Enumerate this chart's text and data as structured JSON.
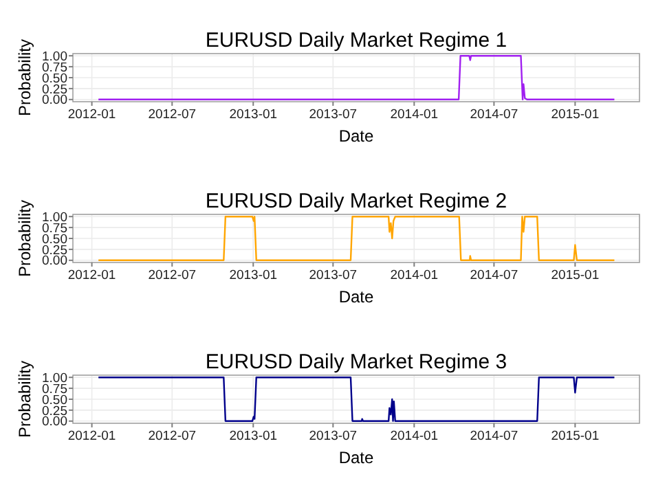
{
  "chart_data": [
    {
      "type": "line",
      "title": "EURUSD Daily Market Regime 1",
      "xlabel": "Date",
      "ylabel": "Probability",
      "grid": true,
      "xlim": [
        "2011-11-19",
        "2015-05-27"
      ],
      "ylim": [
        -0.05,
        1.05
      ],
      "xticks": [
        {
          "value": "2012-01-01",
          "label": "2012-01"
        },
        {
          "value": "2012-07-01",
          "label": "2012-07"
        },
        {
          "value": "2013-01-01",
          "label": "2013-01"
        },
        {
          "value": "2013-07-01",
          "label": "2013-07"
        },
        {
          "value": "2014-01-01",
          "label": "2014-01"
        },
        {
          "value": "2014-07-01",
          "label": "2014-07"
        },
        {
          "value": "2015-01-01",
          "label": "2015-01"
        }
      ],
      "yticks": [
        {
          "value": 0,
          "label": "0.00"
        },
        {
          "value": 0.25,
          "label": "0.25"
        },
        {
          "value": 0.5,
          "label": "0.50"
        },
        {
          "value": 0.75,
          "label": "0.75"
        },
        {
          "value": 1,
          "label": "1.00"
        }
      ],
      "x": [
        "2012-01-16",
        "2014-04-12",
        "2014-04-16",
        "2014-05-06",
        "2014-05-08",
        "2014-05-10",
        "2014-08-31",
        "2014-09-04",
        "2014-09-06",
        "2014-09-09",
        "2014-09-14",
        "2015-03-31"
      ],
      "series": [
        {
          "color": "#a020f0",
          "values": [
            0,
            0,
            1,
            1,
            0.9,
            1,
            1,
            0,
            0.35,
            0.03,
            0,
            0
          ]
        }
      ]
    },
    {
      "type": "line",
      "title": "EURUSD Daily Market Regime 2",
      "xlabel": "Date",
      "ylabel": "Probability",
      "grid": true,
      "xlim": [
        "2011-11-19",
        "2015-05-27"
      ],
      "ylim": [
        -0.05,
        1.05
      ],
      "xticks": [
        {
          "value": "2012-01-01",
          "label": "2012-01"
        },
        {
          "value": "2012-07-01",
          "label": "2012-07"
        },
        {
          "value": "2013-01-01",
          "label": "2013-01"
        },
        {
          "value": "2013-07-01",
          "label": "2013-07"
        },
        {
          "value": "2014-01-01",
          "label": "2014-01"
        },
        {
          "value": "2014-07-01",
          "label": "2014-07"
        },
        {
          "value": "2015-01-01",
          "label": "2015-01"
        }
      ],
      "yticks": [
        {
          "value": 0,
          "label": "0.00"
        },
        {
          "value": 0.25,
          "label": "0.25"
        },
        {
          "value": 0.5,
          "label": "0.50"
        },
        {
          "value": 0.75,
          "label": "0.75"
        },
        {
          "value": 1,
          "label": "1.00"
        }
      ],
      "x": [
        "2012-01-16",
        "2012-10-26",
        "2012-10-30",
        "2012-12-30",
        "2013-01-02",
        "2013-01-04",
        "2013-01-08",
        "2013-08-10",
        "2013-08-14",
        "2013-11-04",
        "2013-11-06",
        "2013-11-09",
        "2013-11-12",
        "2013-11-15",
        "2013-11-19",
        "2014-04-13",
        "2014-04-17",
        "2014-05-07",
        "2014-05-08",
        "2014-05-10",
        "2014-08-31",
        "2014-09-03",
        "2014-09-06",
        "2014-09-09",
        "2014-10-07",
        "2014-10-11",
        "2014-12-29",
        "2015-01-01",
        "2015-01-05",
        "2015-03-31"
      ],
      "series": [
        {
          "color": "#ffa500",
          "values": [
            0,
            0,
            1,
            1,
            0.9,
            1,
            0,
            0,
            1,
            1,
            0.65,
            0.85,
            0.5,
            0.9,
            1,
            1,
            0,
            0,
            0.1,
            0,
            0,
            1,
            0.65,
            1,
            1,
            0,
            0,
            0.35,
            0,
            0
          ]
        }
      ]
    },
    {
      "type": "line",
      "title": "EURUSD Daily Market Regime 3",
      "xlabel": "Date",
      "ylabel": "Probability",
      "grid": true,
      "xlim": [
        "2011-11-19",
        "2015-05-27"
      ],
      "ylim": [
        -0.05,
        1.05
      ],
      "xticks": [
        {
          "value": "2012-01-01",
          "label": "2012-01"
        },
        {
          "value": "2012-07-01",
          "label": "2012-07"
        },
        {
          "value": "2013-01-01",
          "label": "2013-01"
        },
        {
          "value": "2013-07-01",
          "label": "2013-07"
        },
        {
          "value": "2014-01-01",
          "label": "2014-01"
        },
        {
          "value": "2014-07-01",
          "label": "2014-07"
        },
        {
          "value": "2015-01-01",
          "label": "2015-01"
        }
      ],
      "yticks": [
        {
          "value": 0,
          "label": "0.00"
        },
        {
          "value": 0.25,
          "label": "0.25"
        },
        {
          "value": 0.5,
          "label": "0.50"
        },
        {
          "value": 0.75,
          "label": "0.75"
        },
        {
          "value": 1,
          "label": "1.00"
        }
      ],
      "x": [
        "2012-01-16",
        "2012-10-26",
        "2012-10-30",
        "2012-12-30",
        "2013-01-02",
        "2013-01-04",
        "2013-01-08",
        "2013-08-10",
        "2013-08-14",
        "2013-09-04",
        "2013-09-05",
        "2013-09-07",
        "2013-11-04",
        "2013-11-06",
        "2013-11-09",
        "2013-11-12",
        "2013-11-14",
        "2013-11-16",
        "2013-11-19",
        "2014-10-07",
        "2014-10-11",
        "2014-12-29",
        "2015-01-01",
        "2015-01-05",
        "2015-03-31"
      ],
      "series": [
        {
          "color": "#00008b",
          "values": [
            1,
            1,
            0,
            0,
            0.1,
            0.05,
            1,
            1,
            0,
            0,
            0.05,
            0,
            0,
            0.3,
            0.15,
            0.5,
            0,
            0.45,
            0,
            0,
            1,
            1,
            0.65,
            1,
            1
          ]
        }
      ]
    }
  ]
}
